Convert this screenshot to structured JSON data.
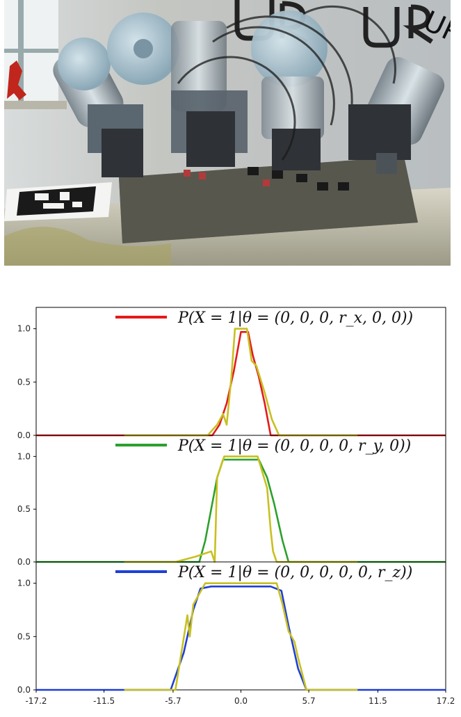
{
  "photo": {
    "label": "UR",
    "colors": {
      "sky": "#c9d1d6",
      "wall": "#9aa3a8",
      "table": "#d8d6c9",
      "robot": "#a9c0cc",
      "dark": "#2b2b2b"
    }
  },
  "chart_data": [
    {
      "type": "line",
      "legend_label": "P(X = 1|θ = (0, 0, 0, r_x, 0, 0))",
      "legend_placement": "top-right",
      "xlim": [
        -17.2,
        17.2
      ],
      "ylim": [
        0,
        1.2
      ],
      "yticks": [
        0.0,
        0.5,
        1.0
      ],
      "series": [
        {
          "color": "#e41a1c",
          "x": [
            -17.2,
            -2.4,
            -1.8,
            -1.2,
            -0.6,
            0.0,
            0.6,
            1.0,
            1.5,
            2.0,
            2.5,
            17.2
          ],
          "y": [
            0,
            0,
            0.1,
            0.3,
            0.6,
            0.97,
            0.97,
            0.75,
            0.55,
            0.3,
            0,
            0
          ]
        },
        {
          "color": "#c8c020",
          "x": [
            -9.8,
            -2.8,
            -2.0,
            -1.5,
            -1.2,
            -0.8,
            -0.5,
            0.5,
            0.9,
            1.3,
            2.0,
            2.6,
            3.2,
            9.8
          ],
          "y": [
            0,
            0,
            0.1,
            0.2,
            0.1,
            0.55,
            1.0,
            1.0,
            0.7,
            0.65,
            0.4,
            0.15,
            0,
            0
          ]
        }
      ]
    },
    {
      "type": "line",
      "legend_label": "P(X = 1|θ = (0, 0, 0, 0, r_y, 0))",
      "legend_placement": "top-right",
      "xlim": [
        -17.2,
        17.2
      ],
      "ylim": [
        0,
        1.2
      ],
      "yticks": [
        0.0,
        0.5,
        1.0
      ],
      "series": [
        {
          "color": "#2ca02c",
          "x": [
            -17.2,
            -3.5,
            -3.0,
            -2.0,
            -1.5,
            1.5,
            2.2,
            2.8,
            3.5,
            4.0,
            17.2
          ],
          "y": [
            0,
            0,
            0.2,
            0.8,
            0.97,
            0.97,
            0.8,
            0.55,
            0.2,
            0,
            0
          ]
        },
        {
          "color": "#c8c020",
          "x": [
            -9.8,
            -5.5,
            -3.8,
            -2.5,
            -2.2,
            -2.0,
            -1.4,
            1.4,
            2.2,
            2.5,
            2.7,
            3.0,
            9.8
          ],
          "y": [
            0,
            0,
            0.05,
            0.1,
            0,
            0.8,
            1.0,
            1.0,
            0.7,
            0.3,
            0.1,
            0,
            0
          ]
        }
      ]
    },
    {
      "type": "line",
      "legend_label": "P(X = 1|θ = (0, 0, 0, 0, 0, r_z))",
      "legend_placement": "top-right",
      "xlim": [
        -17.2,
        17.2
      ],
      "ylim": [
        0,
        1.2
      ],
      "yticks": [
        0.0,
        0.5,
        1.0
      ],
      "xticks": [
        -17.2,
        -11.5,
        -5.7,
        0.0,
        5.7,
        11.5,
        17.2
      ],
      "xtick_labels": [
        "-17.2",
        "-11.5",
        "-5.7",
        "0.0",
        "5.7",
        "11.5",
        "17.2"
      ],
      "series": [
        {
          "color": "#1f3fd6",
          "x": [
            -17.2,
            -5.9,
            -4.8,
            -4.0,
            -3.4,
            -2.5,
            2.5,
            3.4,
            4.0,
            4.8,
            5.5,
            17.2
          ],
          "y": [
            0,
            0,
            0.35,
            0.75,
            0.95,
            0.97,
            0.97,
            0.93,
            0.6,
            0.2,
            0,
            0
          ]
        },
        {
          "color": "#c8c020",
          "x": [
            -9.8,
            -5.5,
            -4.5,
            -4.3,
            -4.0,
            -3.0,
            3.0,
            3.5,
            4.0,
            4.5,
            4.8,
            5.5,
            9.8
          ],
          "y": [
            0,
            0,
            0.7,
            0.5,
            0.8,
            1.0,
            1.0,
            0.8,
            0.55,
            0.45,
            0.3,
            0,
            0
          ]
        }
      ]
    }
  ]
}
